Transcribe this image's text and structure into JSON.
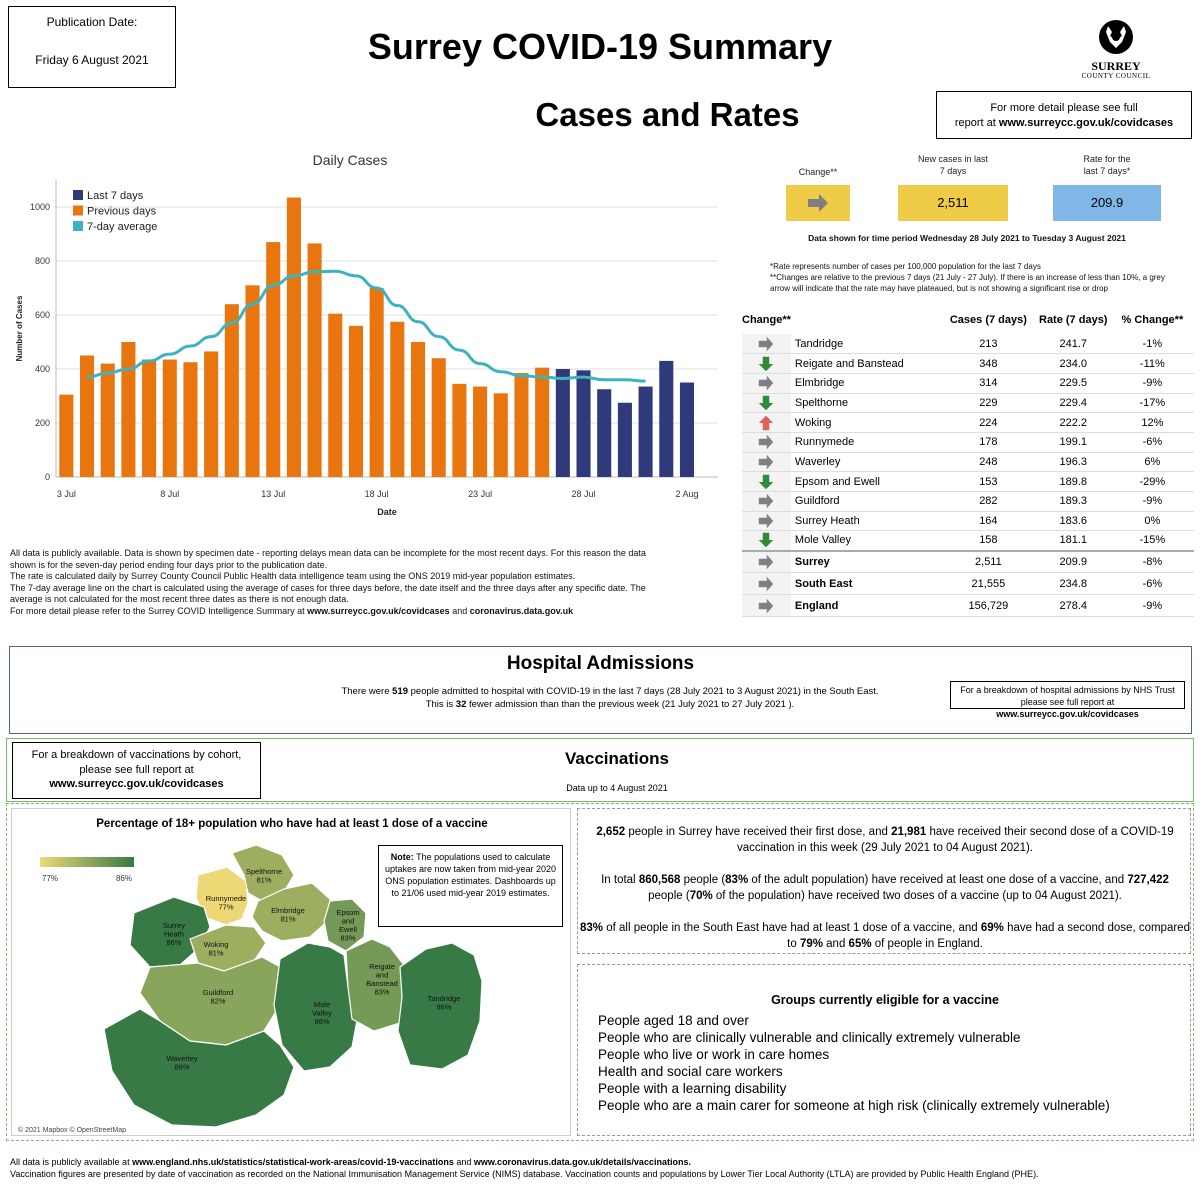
{
  "publication": {
    "label": "Publication Date:",
    "date": "Friday 6 August 2021"
  },
  "title": "Surrey COVID-19 Summary",
  "subtitle": "Cases and Rates",
  "logo": {
    "name": "SURREY",
    "sub": "COUNTY COUNCIL"
  },
  "detail_box": {
    "line1": "For more detail please see full",
    "line2_prefix": "report at ",
    "line2_link": "www.surreycc.gov.uk/covidcases"
  },
  "chart_data": {
    "type": "bar",
    "title": "Daily Cases",
    "xlabel": "Date",
    "ylabel": "Number of Cases",
    "ylim": [
      0,
      1100
    ],
    "yticks": [
      0,
      200,
      400,
      600,
      800,
      1000
    ],
    "xtick_labels": [
      {
        "index": 0,
        "label": "3 Jul"
      },
      {
        "index": 5,
        "label": "8 Jul"
      },
      {
        "index": 10,
        "label": "13 Jul"
      },
      {
        "index": 15,
        "label": "18 Jul"
      },
      {
        "index": 20,
        "label": "23 Jul"
      },
      {
        "index": 25,
        "label": "28 Jul"
      },
      {
        "index": 30,
        "label": "2 Aug"
      }
    ],
    "categories": [
      "3 Jul",
      "4 Jul",
      "5 Jul",
      "6 Jul",
      "7 Jul",
      "8 Jul",
      "9 Jul",
      "10 Jul",
      "11 Jul",
      "12 Jul",
      "13 Jul",
      "14 Jul",
      "15 Jul",
      "16 Jul",
      "17 Jul",
      "18 Jul",
      "19 Jul",
      "20 Jul",
      "21 Jul",
      "22 Jul",
      "23 Jul",
      "24 Jul",
      "25 Jul",
      "26 Jul",
      "27 Jul",
      "28 Jul",
      "29 Jul",
      "30 Jul",
      "31 Jul",
      "1 Aug",
      "2 Aug",
      "3 Aug"
    ],
    "series": [
      {
        "name": "Previous days",
        "color": "#E8750E",
        "values": [
          305,
          450,
          420,
          500,
          435,
          435,
          425,
          465,
          640,
          710,
          870,
          1035,
          865,
          605,
          560,
          700,
          575,
          500,
          440,
          345,
          335,
          310,
          385,
          405,
          null,
          null,
          null,
          null,
          null,
          null,
          null,
          null
        ]
      },
      {
        "name": "Last 7 days",
        "color": "#2F3A7A",
        "values": [
          null,
          null,
          null,
          null,
          null,
          null,
          null,
          null,
          null,
          null,
          null,
          null,
          null,
          null,
          null,
          null,
          null,
          null,
          null,
          null,
          null,
          null,
          null,
          null,
          400,
          395,
          325,
          275,
          335,
          430,
          350,
          null
        ]
      },
      {
        "name": "7-day average",
        "color": "#3DB3BF",
        "type": "line",
        "values": [
          null,
          370,
          385,
          400,
          430,
          455,
          485,
          520,
          570,
          640,
          710,
          745,
          760,
          762,
          745,
          700,
          635,
          575,
          520,
          470,
          420,
          390,
          375,
          370,
          365,
          370,
          360,
          360,
          355,
          null,
          null,
          null
        ]
      }
    ],
    "legend": "top-left",
    "grid": true
  },
  "notes": [
    "All data is publicly available. Data is shown by specimen date - reporting delays mean data can be incomplete for the most recent days. For this reason the data",
    "shown is for the seven-day period ending four days prior to the publication date.",
    "The rate is calculated daily by Surrey County Council Public Health data intelligence team using the ONS 2019 mid-year population estimates.",
    "The 7-day average line on the chart is calculated using the average of cases for three days before, the date itself and the three days after any specific date. The",
    "average is not calculated for the most recent three dates as there is not enough data."
  ],
  "notes_last": {
    "prefix": "For more detail please refer to the Surrey COVID Intelligence Summary at ",
    "link1": "www.surreycc.gov.uk/covidcases",
    "mid": " and ",
    "link2": "coronavirus.data.gov.uk"
  },
  "kpis": {
    "change_label": "Change**",
    "new_cases_label_1": "New cases in last",
    "new_cases_label_2": "7 days",
    "new_cases_value": "2,511",
    "rate_label_1": "Rate for the",
    "rate_label_2": "last 7 days*",
    "rate_value": "209.9",
    "period": "Data shown for time period Wednesday 28 July 2021 to Tuesday 3 August 2021",
    "footnote1": "*Rate represents number of cases per 100,000 population for the last 7 days",
    "footnote2": "**Changes are relative to the previous 7 days (21 July - 27 July). If there is an increase of less than 10%, a grey",
    "footnote3": "arrow will indicate that the rate may have plateaued, but is not showing a significant rise or drop",
    "colors": {
      "yellow": "#EFCC48",
      "blue": "#7FB8E6"
    }
  },
  "table": {
    "headers": [
      "Change**",
      "",
      "Cases (7 days)",
      "Rate (7 days)",
      "% Change**"
    ],
    "rows": [
      {
        "arrow": "right",
        "name": "Tandridge",
        "cases": "213",
        "rate": "241.7",
        "pct": "-1%"
      },
      {
        "arrow": "down",
        "name": "Reigate and Banstead",
        "cases": "348",
        "rate": "234.0",
        "pct": "-11%"
      },
      {
        "arrow": "right",
        "name": "Elmbridge",
        "cases": "314",
        "rate": "229.5",
        "pct": "-9%"
      },
      {
        "arrow": "down",
        "name": "Spelthorne",
        "cases": "229",
        "rate": "229.4",
        "pct": "-17%"
      },
      {
        "arrow": "up",
        "name": "Woking",
        "cases": "224",
        "rate": "222.2",
        "pct": "12%"
      },
      {
        "arrow": "right",
        "name": "Runnymede",
        "cases": "178",
        "rate": "199.1",
        "pct": "-6%"
      },
      {
        "arrow": "right",
        "name": "Waverley",
        "cases": "248",
        "rate": "196.3",
        "pct": "6%"
      },
      {
        "arrow": "down",
        "name": "Epsom and Ewell",
        "cases": "153",
        "rate": "189.8",
        "pct": "-29%"
      },
      {
        "arrow": "right",
        "name": "Guildford",
        "cases": "282",
        "rate": "189.3",
        "pct": "-9%"
      },
      {
        "arrow": "right",
        "name": "Surrey Heath",
        "cases": "164",
        "rate": "183.6",
        "pct": "0%"
      },
      {
        "arrow": "down",
        "name": "Mole Valley",
        "cases": "158",
        "rate": "181.1",
        "pct": "-15%"
      }
    ],
    "summary": [
      {
        "arrow": "right",
        "name": "Surrey",
        "cases": "2,511",
        "rate": "209.9",
        "pct": "-8%"
      },
      {
        "arrow": "right",
        "name": "South East",
        "cases": "21,555",
        "rate": "234.8",
        "pct": "-6%"
      },
      {
        "arrow": "right",
        "name": "England",
        "cases": "156,729",
        "rate": "278.4",
        "pct": "-9%"
      }
    ],
    "arrow_colors": {
      "right": "#7F7F7F",
      "down": "#2E8B3A",
      "up": "#E0605A"
    }
  },
  "hospital": {
    "title": "Hospital Admissions",
    "l1_a": "There were ",
    "l1_num": "519",
    "l1_b": " people admitted to hospital with COVID-19 in the last 7 days (28 July 2021 to 3 August 2021) in the South East.",
    "l2_a": "This is ",
    "l2_num": "32",
    "l2_b": " fewer admission than than the previous week (21 July 2021 to  27 July 2021 ).",
    "box_l1": "For a breakdown of hospital admissions by NHS Trust",
    "box_l2_prefix": "please see full report at ",
    "box_l2_link": "www.surreycc.gov.uk/covidcases"
  },
  "vaccinations": {
    "box_l1": "For a breakdown of vaccinations by cohort,",
    "box_l2": "please see full report at",
    "box_l3": "www.surreycc.gov.uk/covidcases",
    "title": "Vaccinations",
    "subtitle": "Data up to 4 August 2021"
  },
  "map": {
    "title": "Percentage of 18+ population who have had at least 1 dose of a vaccine",
    "legend_min": "77%",
    "legend_max": "86%",
    "note_bold": "Note:",
    "note_text": " The populations used to calculate uptakes are now taken from mid-year 2020 ONS population estimates. Dashboards up to 21/06 used mid-year 2019 estimates.",
    "copyright": "© 2021 Mapbox © OpenStreetMap",
    "districts": [
      {
        "name": "Runnymede",
        "pct": "77%",
        "value": 77
      },
      {
        "name": "Spelthorne",
        "pct": "81%",
        "value": 81
      },
      {
        "name": "Surrey Heath",
        "pct": "86%",
        "value": 86
      },
      {
        "name": "Elmbridge",
        "pct": "81%",
        "value": 81
      },
      {
        "name": "Woking",
        "pct": "81%",
        "value": 81
      },
      {
        "name": "Epsom and Ewell",
        "pct": "83%",
        "value": 83
      },
      {
        "name": "Guildford",
        "pct": "82%",
        "value": 82
      },
      {
        "name": "Mole Valley",
        "pct": "86%",
        "value": 86
      },
      {
        "name": "Reigate and Banstead",
        "pct": "83%",
        "value": 83
      },
      {
        "name": "Tandridge",
        "pct": "86%",
        "value": 86
      },
      {
        "name": "Waverley",
        "pct": "86%",
        "value": 86
      }
    ]
  },
  "dose": {
    "p1_a": "2,652",
    "p1_b": " people in Surrey have received their first dose, and ",
    "p1_c": "21,981",
    "p1_d": " have received their second dose of a COVID-19",
    "p1_e": "vaccination in this week (29 July 2021 to 04 August 2021).",
    "p2_a": "In total ",
    "p2_b": "860,568",
    "p2_c": " people (",
    "p2_d": "83%",
    "p2_e": " of the adult population) have received at least one dose of a vaccine, and ",
    "p2_f": "727,422",
    "p2_g": "people (",
    "p2_h": "70%",
    "p2_i": " of the population) have received two doses of a vaccine (up  to 04 August 2021).",
    "p3_a": "83%",
    "p3_b": " of all people in the South East have had at least 1 dose of a vaccine, and ",
    "p3_c": "69%",
    "p3_d": " have had a second dose, compared",
    "p3_e": "to ",
    "p3_f": "79%",
    "p3_g": " and ",
    "p3_h": "65%",
    "p3_i": " of people in England."
  },
  "eligible": {
    "title": "Groups currently eligible for a vaccine",
    "items": [
      "People aged 18 and over",
      "People who are clinically vulnerable and clinically extremely vulnerable",
      "People who live or work in care homes",
      "Health and social care workers",
      "People with a learning disability",
      "People who are a main carer for someone at high risk (clinically extremely vulnerable)"
    ]
  },
  "footer": {
    "l1_a": "All data is publicly available at ",
    "l1_link1": "www.england.nhs.uk/statistics/statistical-work-areas/covid-19-vaccinations",
    "l1_b": " and ",
    "l1_link2": "www.coronavirus.data.gov.uk/details/vaccinations.",
    "l2": "Vaccination figures are presented by date of vaccination as recorded on the National Immunisation Management Service (NIMS) database. Vaccination counts and populations by Lower Tier Local Authority (LTLA) are provided by Public Health England (PHE)."
  }
}
